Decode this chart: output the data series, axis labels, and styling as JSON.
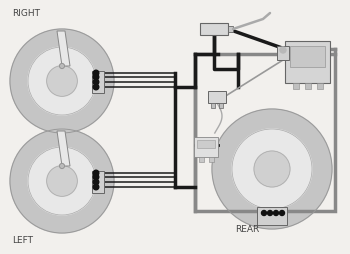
{
  "bg_color": "#f2f0ed",
  "dc": "#1a1a1a",
  "gc": "#888888",
  "label_right": "RIGHT",
  "label_left": "LEFT",
  "label_rear": "REAR",
  "figsize": [
    3.5,
    2.55
  ],
  "dpi": 100,
  "wheel_gray_outer": "#c8c8c8",
  "wheel_gray_inner": "#e0e0e0",
  "wheel_outline": "#aaaaaa",
  "component_fill": "#d8d8d8",
  "component_edge": "#666666"
}
